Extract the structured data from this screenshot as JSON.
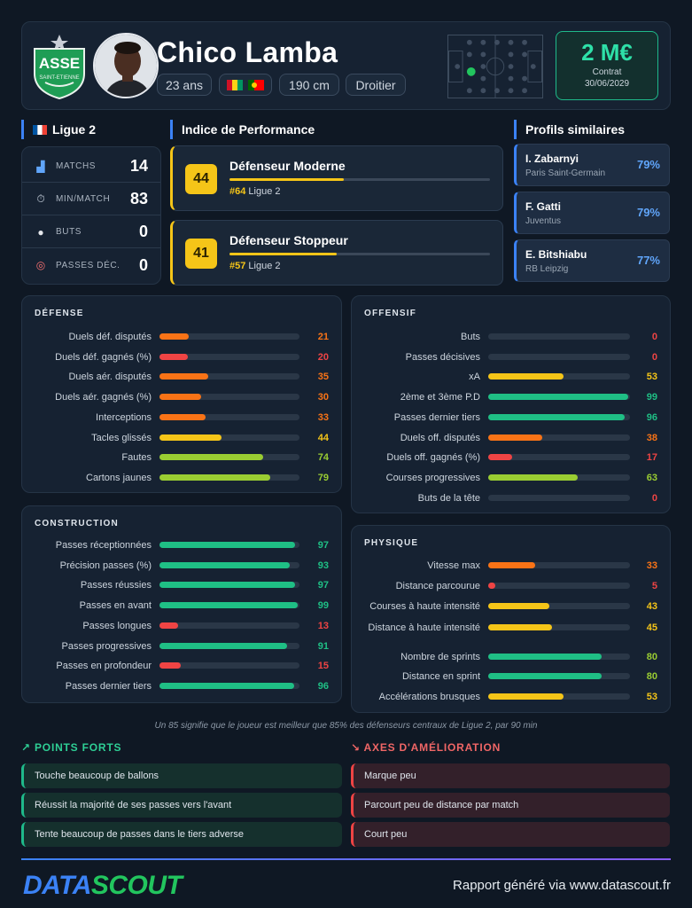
{
  "player": {
    "name": "Chico Lamba",
    "age": "23 ans",
    "height": "190 cm",
    "foot": "Droitier",
    "club_logo_text": "ASSE",
    "value": "2 M€",
    "contract_label": "Contrat",
    "contract_date": "30/06/2029"
  },
  "league": {
    "title": "Ligue 2",
    "stats": [
      {
        "icon": "pitch-icon",
        "label": "MATCHS",
        "value": "14"
      },
      {
        "icon": "stopwatch-icon",
        "label": "MIN/MATCH",
        "value": "83"
      },
      {
        "icon": "ball-icon",
        "label": "BUTS",
        "value": "0"
      },
      {
        "icon": "target-icon",
        "label": "PASSES DÉC.",
        "value": "0"
      }
    ]
  },
  "performance": {
    "title": "Indice de Performance",
    "items": [
      {
        "score": "44",
        "title": "Défenseur Moderne",
        "rank": "#64",
        "league": "Ligue 2",
        "level": 44
      },
      {
        "score": "41",
        "title": "Défenseur Stoppeur",
        "rank": "#57",
        "league": "Ligue 2",
        "level": 41
      }
    ]
  },
  "similar": {
    "title": "Profils similaires",
    "items": [
      {
        "name": "I. Zabarnyi",
        "club": "Paris Saint-Germain",
        "pct": "79%"
      },
      {
        "name": "F. Gatti",
        "club": "Juventus",
        "pct": "79%"
      },
      {
        "name": "E. Bitshiabu",
        "club": "RB Leipzig",
        "pct": "77%"
      }
    ]
  },
  "sections": {
    "defense": {
      "title": "DÉFENSE",
      "stats": [
        {
          "label": "Duels déf. disputés",
          "value": 21
        },
        {
          "label": "Duels déf. gagnés (%)",
          "value": 20
        },
        {
          "label": "Duels aér. disputés",
          "value": 35
        },
        {
          "label": "Duels aér. gagnés (%)",
          "value": 30
        },
        {
          "label": "Interceptions",
          "value": 33
        },
        {
          "label": "Tacles glissés",
          "value": 44
        },
        {
          "label": "Fautes",
          "value": 74
        },
        {
          "label": "Cartons jaunes",
          "value": 79
        }
      ]
    },
    "offensif": {
      "title": "OFFENSIF",
      "stats": [
        {
          "label": "Buts",
          "value": 0
        },
        {
          "label": "Passes décisives",
          "value": 0
        },
        {
          "label": "xA",
          "value": 53
        },
        {
          "label": "2ème et 3ème P.D",
          "value": 99
        },
        {
          "label": "Passes dernier tiers",
          "value": 96
        },
        {
          "label": "Duels off. disputés",
          "value": 38
        },
        {
          "label": "Duels off. gagnés (%)",
          "value": 17
        },
        {
          "label": "Courses progressives",
          "value": 63
        },
        {
          "label": "Buts de la tête",
          "value": 0
        }
      ]
    },
    "construction": {
      "title": "CONSTRUCTION",
      "stats": [
        {
          "label": "Passes réceptionnées",
          "value": 97
        },
        {
          "label": "Précision passes (%)",
          "value": 93
        },
        {
          "label": "Passes réussies",
          "value": 97
        },
        {
          "label": "Passes en avant",
          "value": 99
        },
        {
          "label": "Passes longues",
          "value": 13
        },
        {
          "label": "Passes progressives",
          "value": 91
        },
        {
          "label": "Passes en profondeur",
          "value": 15
        },
        {
          "label": "Passes dernier tiers",
          "value": 96
        }
      ]
    },
    "physique": {
      "title": "PHYSIQUE",
      "stats": [
        {
          "label": "Vitesse max",
          "value": 33
        },
        {
          "label": "Distance parcourue",
          "value": 5
        },
        {
          "label": "Courses à haute intensité",
          "value": 43
        },
        {
          "label": "Distance à haute intensité",
          "value": 45
        },
        {
          "label": "Nombre de sprints",
          "value": 80
        },
        {
          "label": "Distance en sprint",
          "value": 80
        },
        {
          "label": "Accélérations brusques",
          "value": 53
        }
      ]
    }
  },
  "note": "Un 85 signifie que le joueur est meilleur que 85% des défenseurs centraux de Ligue 2, par 90 min",
  "strengths": {
    "title": "POINTS FORTS",
    "items": [
      "Touche beaucoup de ballons",
      "Réussit la majorité de ses passes vers l'avant",
      "Tente beaucoup de passes dans le tiers adverse"
    ]
  },
  "improvements": {
    "title": "AXES D'AMÉLIORATION",
    "items": [
      "Marque peu",
      "Parcourt peu de distance par match",
      "Court peu"
    ]
  },
  "footer": {
    "brand_left": "DATA",
    "brand_right": "SCOUT",
    "text": "Rapport généré via www.datascout.fr"
  },
  "colors": {
    "green": "#1fbf85",
    "lime": "#9acd32",
    "yellow": "#f5c518",
    "orange": "#f97316",
    "red": "#ef4444",
    "accent": "#3b82f6"
  }
}
